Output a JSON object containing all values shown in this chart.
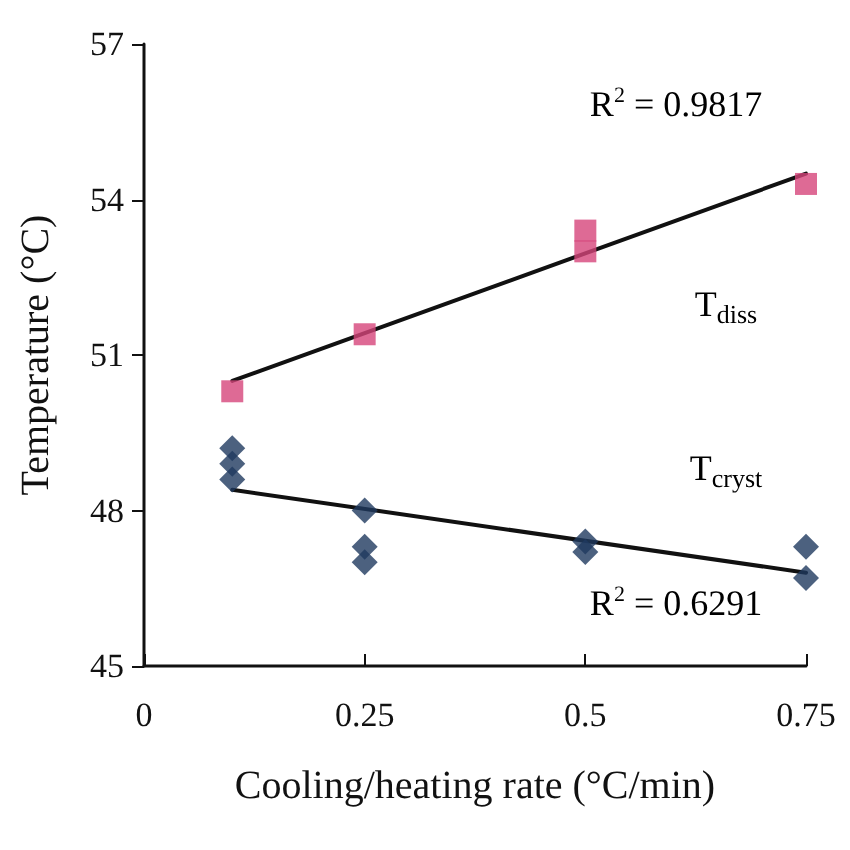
{
  "chart_data": {
    "type": "scatter",
    "xlabel": "Cooling/heating rate (°C/min)",
    "ylabel": "Temperature (°C)",
    "xlim": [
      0,
      0.75
    ],
    "xticks": [
      0,
      0.25,
      0.5,
      0.75
    ],
    "ylim": [
      45,
      57
    ],
    "yticks": [
      45,
      48,
      51,
      54,
      57
    ],
    "grid": false,
    "legend": false,
    "series": [
      {
        "name": "T$_{diss}$",
        "color": "#d6457a",
        "marker": "square",
        "x": [
          0.1,
          0.25,
          0.5,
          0.5,
          0.75
        ],
        "values": [
          50.3,
          51.4,
          53.4,
          53.0,
          54.3
        ]
      },
      {
        "name": "T$_{cryst}$",
        "color": "#1f3a5f",
        "marker": "diamond",
        "x": [
          0.1,
          0.1,
          0.1,
          0.25,
          0.25,
          0.25,
          0.5,
          0.5,
          0.75,
          0.75
        ],
        "values": [
          49.2,
          48.9,
          48.6,
          48.0,
          47.3,
          47.0,
          47.4,
          47.2,
          47.3,
          46.7
        ]
      },
      {
        "type": "line",
        "color": "#111111",
        "marker": "none",
        "x": [
          0.1,
          0.75
        ],
        "values": [
          50.5,
          54.5
        ]
      },
      {
        "type": "line",
        "color": "#111111",
        "marker": "none",
        "x": [
          0.1,
          0.75
        ],
        "values": [
          48.4,
          46.8
        ]
      }
    ],
    "annotations": [
      "R$^{2}$ = 0.9817",
      "R$^{2}$ = 0.6291"
    ]
  }
}
